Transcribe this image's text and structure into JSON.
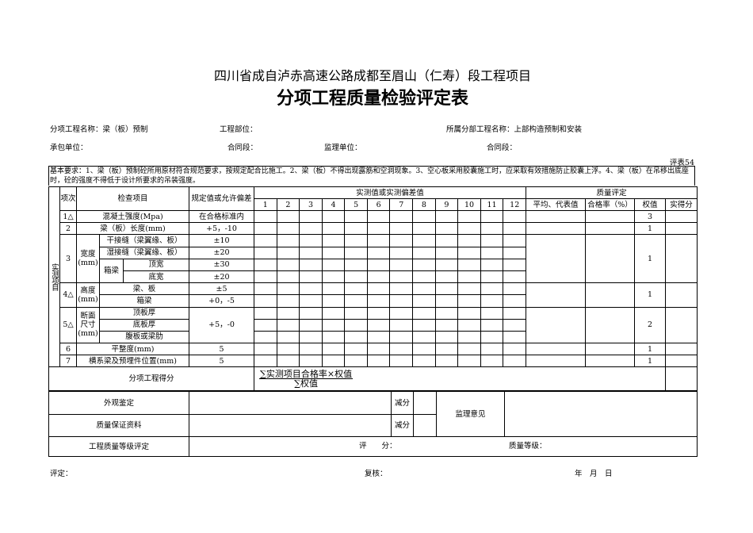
{
  "header": {
    "subtitle": "四川省成自泸赤高速公路成都至眉山（仁寿）段工程项目",
    "title": "分项工程质量检验评定表"
  },
  "info": {
    "subitem_name": "分项工程名称：梁（板）预制",
    "location": "工程部位：",
    "parent_name": "所属分部工程名称：上部构造预制和安装",
    "contractor": "承包单位：",
    "contract_section_1": "合同段：",
    "supervisor": "监理单位：",
    "contract_section_2": "合同段：",
    "form_no": "评表54"
  },
  "requirements": "基本要求：1、梁（板）预制砼所用原材符合规范要求，按规定配合比施工。2、梁（板）不得出现露筋和空洞现象。3、空心板采用胶囊施工时，应采取有效措施防止胶囊上浮。4、梁（板）在吊移出底座时，砼的强度不得低于设计所要求的吊装强度。",
  "table": {
    "side_label": "实测项目",
    "col_no": "项次",
    "col_item": "检查项目",
    "col_spec": "规定值或允许偏差",
    "col_measured": "实测值或实测偏差值",
    "col_quality": "质量评定",
    "measure_cols": [
      "1",
      "2",
      "3",
      "4",
      "5",
      "6",
      "7",
      "8",
      "9",
      "10",
      "11",
      "12"
    ],
    "col_avg": "平均、代表值",
    "col_rate": "合格率（%）",
    "col_weight": "权值",
    "col_score": "实得分",
    "rows": {
      "r1": {
        "no": "1△",
        "item": "混凝土强度(Mpa)",
        "spec": "在合格标准内",
        "weight": "3"
      },
      "r2": {
        "no": "2",
        "item": "梁（板）长度(mm)",
        "spec": "+5，-10",
        "weight": "1"
      },
      "r3": {
        "no": "3",
        "group": "宽度(mm)",
        "sub1": "干接缝（梁翼缘、板）",
        "spec1": "±10",
        "sub2": "湿接缝（梁翼缘、板）",
        "spec2": "±20",
        "box": "箱梁",
        "sub3": "顶宽",
        "spec3": "±30",
        "sub4": "底宽",
        "spec4": "±20",
        "weight": "1"
      },
      "r4": {
        "no": "4△",
        "group": "高度(mm)",
        "sub1": "梁、板",
        "spec1": "±5",
        "sub2": "箱梁",
        "spec2": "+0，-5",
        "weight": "1"
      },
      "r5": {
        "no": "5△",
        "group": "断面尺寸(mm)",
        "sub1": "顶板厚",
        "sub2": "底板厚",
        "sub3": "腹板或梁肋",
        "spec": "+5，-0",
        "weight": "2"
      },
      "r6": {
        "no": "6",
        "item": "平整度(mm)",
        "spec": "5",
        "weight": "1"
      },
      "r7": {
        "no": "7",
        "item": "横系梁及预埋件位置(mm)",
        "spec": "5",
        "weight": "1"
      }
    },
    "score_label": "分项工程得分",
    "formula_num": "∑实测项目合格率×权值",
    "formula_den": "∑权值"
  },
  "bottom": {
    "appearance": "外观鉴定",
    "deduct_1": "减分",
    "quality_docs": "质量保证资料",
    "deduct_2": "减分",
    "supervisor_opinion": "监理意见",
    "grade_eval": "工程质量等级评定",
    "score": "评　　分：",
    "grade": "质量等级："
  },
  "footer": {
    "evaluator": "评定：",
    "reviewer": "复核：",
    "date": "年　月　日"
  }
}
